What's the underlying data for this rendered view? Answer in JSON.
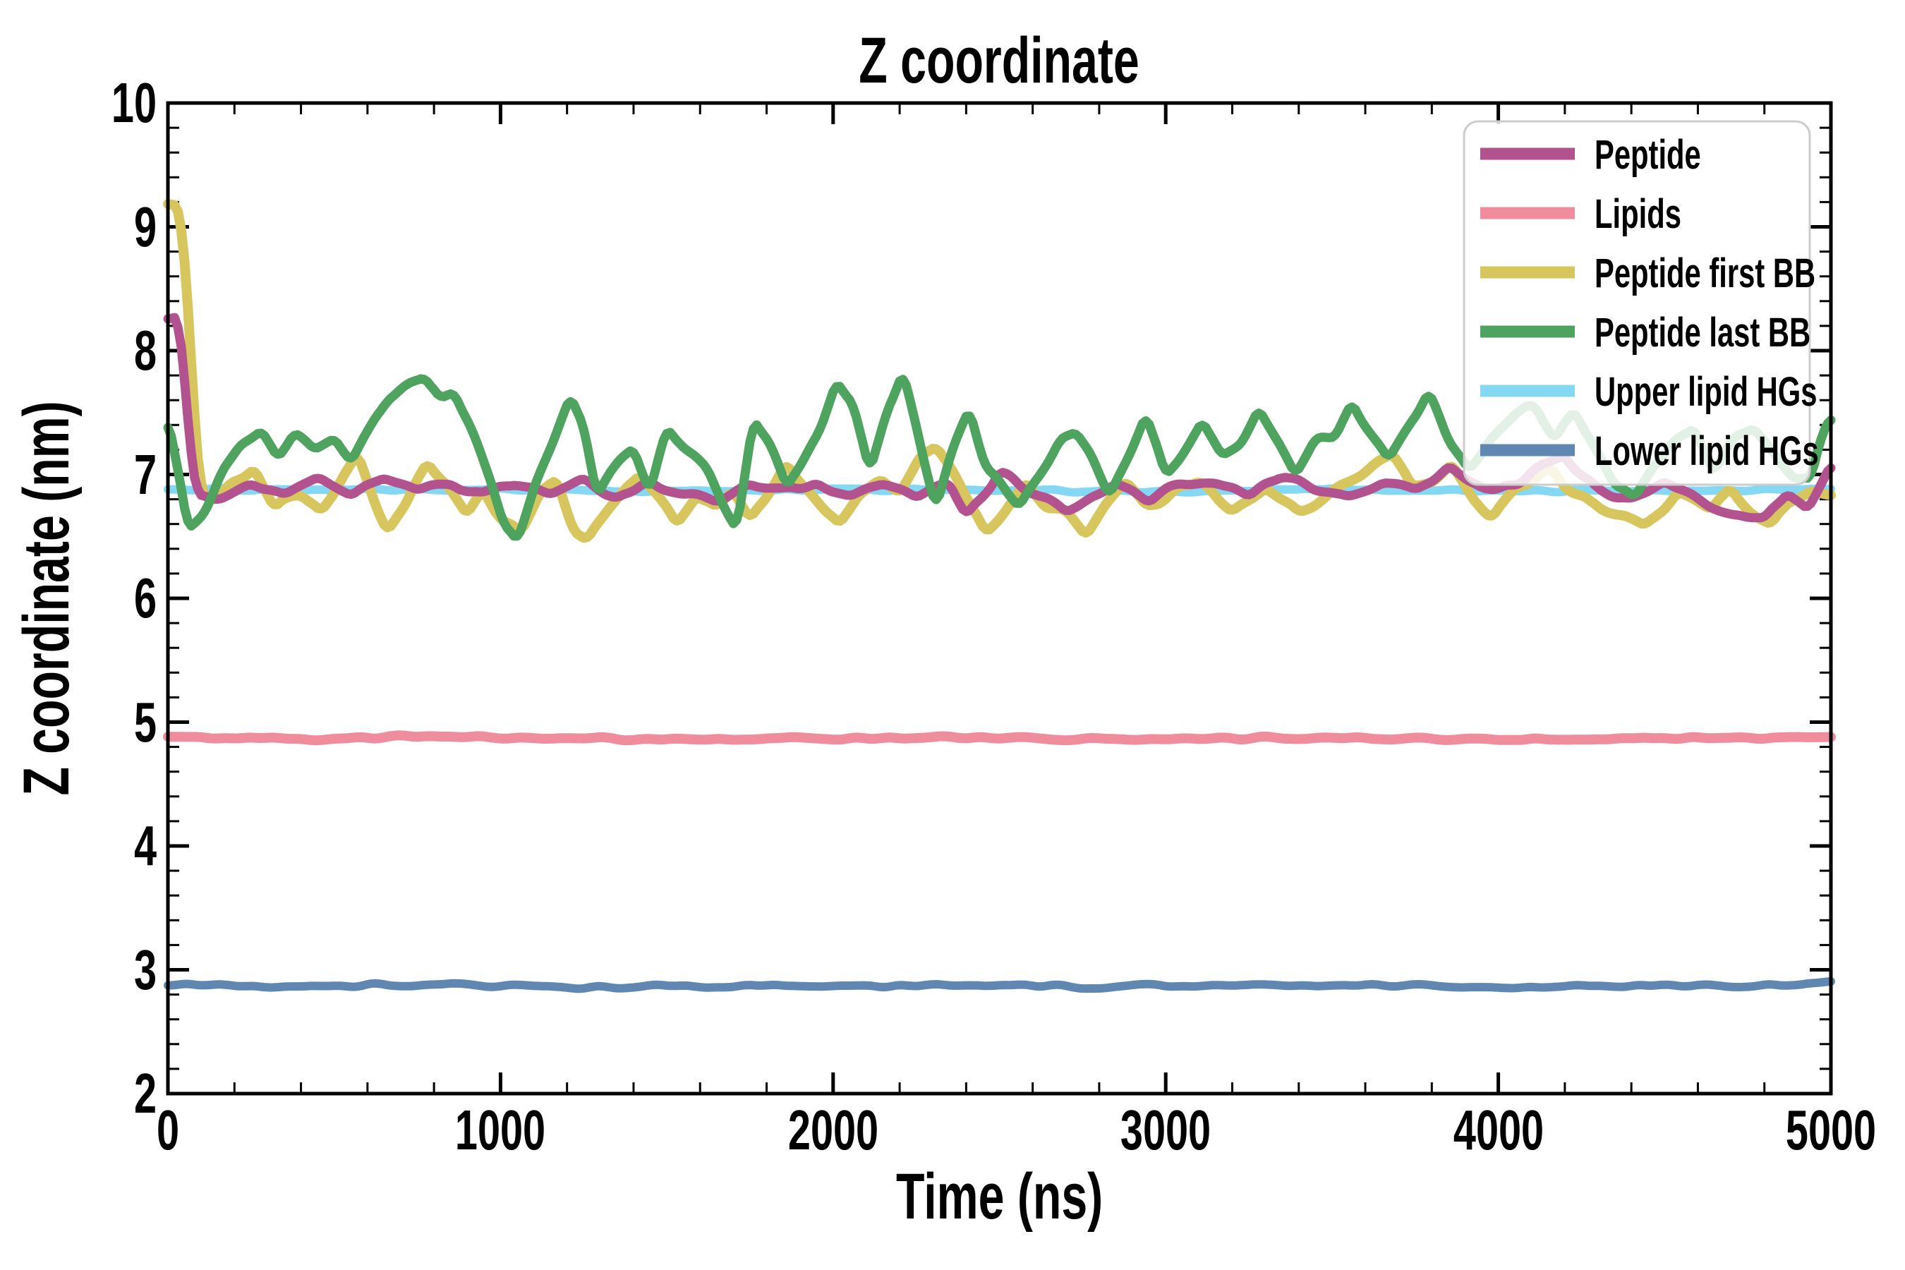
{
  "chart_data": {
    "type": "line",
    "title": "Z coordinate",
    "xlabel": "Time (ns)",
    "ylabel": "Z coordinate (nm)",
    "xlim": [
      0,
      5000
    ],
    "ylim": [
      2,
      10
    ],
    "x_major_ticks": [
      0,
      1000,
      2000,
      3000,
      4000,
      5000
    ],
    "x_minor_step": 200,
    "y_major_ticks": [
      10,
      9,
      8,
      7,
      6,
      5,
      4,
      3,
      2
    ],
    "y_minor_step": 0.2,
    "grid": false,
    "background": "#ffffff",
    "spine_color": "#000000",
    "legend_position": "upper right",
    "series": [
      {
        "name": "Lipids",
        "key": "lipids",
        "color": "#f08d9d",
        "line_width": 14,
        "noise": 0.018,
        "seed": 101,
        "keypoints": [
          [
            0,
            4.88
          ],
          [
            400,
            4.87
          ],
          [
            800,
            4.88
          ],
          [
            1200,
            4.87
          ],
          [
            1600,
            4.86
          ],
          [
            2000,
            4.87
          ],
          [
            2400,
            4.88
          ],
          [
            2800,
            4.86
          ],
          [
            3200,
            4.87
          ],
          [
            3600,
            4.87
          ],
          [
            4000,
            4.86
          ],
          [
            4400,
            4.87
          ],
          [
            4800,
            4.87
          ],
          [
            5000,
            4.89
          ]
        ]
      },
      {
        "name": "Lower lipid HGs",
        "key": "lower-lipid-hgs",
        "color": "#5f87b1",
        "line_width": 12,
        "noise": 0.022,
        "seed": 607,
        "keypoints": [
          [
            0,
            2.88
          ],
          [
            400,
            2.87
          ],
          [
            800,
            2.88
          ],
          [
            1200,
            2.86
          ],
          [
            1600,
            2.87
          ],
          [
            2000,
            2.87
          ],
          [
            2400,
            2.88
          ],
          [
            2800,
            2.86
          ],
          [
            3200,
            2.87
          ],
          [
            3600,
            2.88
          ],
          [
            4000,
            2.86
          ],
          [
            4400,
            2.87
          ],
          [
            4800,
            2.88
          ],
          [
            5000,
            2.9
          ]
        ]
      },
      {
        "name": "Upper lipid HGs",
        "key": "upper-lipid-hgs",
        "color": "#85d8f3",
        "line_width": 12,
        "noise": 0.015,
        "seed": 503,
        "keypoints": [
          [
            0,
            6.88
          ],
          [
            500,
            6.87
          ],
          [
            1000,
            6.88
          ],
          [
            1500,
            6.86
          ],
          [
            2000,
            6.88
          ],
          [
            2500,
            6.87
          ],
          [
            3000,
            6.86
          ],
          [
            3500,
            6.88
          ],
          [
            4000,
            6.87
          ],
          [
            4500,
            6.87
          ],
          [
            5000,
            6.88
          ]
        ]
      },
      {
        "name": "Peptide first BB",
        "key": "peptide-first-bb",
        "color": "#d7c55d",
        "line_width": 14,
        "noise": 0.06,
        "seed": 307,
        "keypoints": [
          [
            0,
            9.25
          ],
          [
            35,
            9.2
          ],
          [
            60,
            8.4
          ],
          [
            80,
            7.4
          ],
          [
            100,
            6.85
          ],
          [
            150,
            6.8
          ],
          [
            200,
            6.95
          ],
          [
            260,
            7.05
          ],
          [
            320,
            6.72
          ],
          [
            400,
            6.85
          ],
          [
            460,
            6.68
          ],
          [
            520,
            6.98
          ],
          [
            570,
            7.12
          ],
          [
            620,
            6.82
          ],
          [
            660,
            6.58
          ],
          [
            720,
            6.78
          ],
          [
            780,
            7.08
          ],
          [
            840,
            6.9
          ],
          [
            900,
            6.68
          ],
          [
            950,
            6.85
          ],
          [
            1010,
            6.62
          ],
          [
            1060,
            6.55
          ],
          [
            1120,
            6.85
          ],
          [
            1170,
            6.95
          ],
          [
            1220,
            6.58
          ],
          [
            1260,
            6.46
          ],
          [
            1320,
            6.72
          ],
          [
            1380,
            6.95
          ],
          [
            1420,
            7.02
          ],
          [
            1480,
            6.78
          ],
          [
            1530,
            6.62
          ],
          [
            1590,
            6.85
          ],
          [
            1650,
            6.72
          ],
          [
            1700,
            6.88
          ],
          [
            1750,
            6.62
          ],
          [
            1810,
            6.85
          ],
          [
            1860,
            7.05
          ],
          [
            1920,
            6.88
          ],
          [
            1970,
            6.72
          ],
          [
            2020,
            6.62
          ],
          [
            2080,
            6.85
          ],
          [
            2140,
            6.98
          ],
          [
            2200,
            6.88
          ],
          [
            2260,
            7.12
          ],
          [
            2310,
            7.22
          ],
          [
            2360,
            7.0
          ],
          [
            2420,
            6.75
          ],
          [
            2460,
            6.52
          ],
          [
            2520,
            6.72
          ],
          [
            2580,
            6.92
          ],
          [
            2640,
            6.75
          ],
          [
            2700,
            6.68
          ],
          [
            2760,
            6.53
          ],
          [
            2820,
            6.78
          ],
          [
            2880,
            6.95
          ],
          [
            2940,
            6.75
          ],
          [
            3000,
            6.82
          ],
          [
            3100,
            6.95
          ],
          [
            3200,
            6.72
          ],
          [
            3300,
            6.9
          ],
          [
            3400,
            6.68
          ],
          [
            3500,
            6.85
          ],
          [
            3620,
            7.08
          ],
          [
            3680,
            7.18
          ],
          [
            3740,
            6.9
          ],
          [
            3800,
            6.95
          ],
          [
            3860,
            7.12
          ],
          [
            3920,
            6.82
          ],
          [
            3980,
            6.68
          ],
          [
            4060,
            6.92
          ],
          [
            4160,
            7.0
          ],
          [
            4260,
            6.82
          ],
          [
            4360,
            6.66
          ],
          [
            4440,
            6.58
          ],
          [
            4540,
            6.85
          ],
          [
            4640,
            6.72
          ],
          [
            4700,
            6.88
          ],
          [
            4760,
            6.68
          ],
          [
            4820,
            6.56
          ],
          [
            4880,
            6.78
          ],
          [
            4940,
            6.88
          ],
          [
            5000,
            6.82
          ]
        ]
      },
      {
        "name": "Peptide",
        "key": "peptide",
        "color": "#b2538f",
        "line_width": 13,
        "noise": 0.05,
        "seed": 211,
        "keypoints": [
          [
            0,
            8.28
          ],
          [
            30,
            8.3
          ],
          [
            50,
            7.8
          ],
          [
            70,
            7.1
          ],
          [
            90,
            6.82
          ],
          [
            150,
            6.8
          ],
          [
            250,
            6.92
          ],
          [
            350,
            6.84
          ],
          [
            450,
            6.95
          ],
          [
            550,
            6.85
          ],
          [
            650,
            6.98
          ],
          [
            750,
            6.88
          ],
          [
            850,
            6.95
          ],
          [
            950,
            6.82
          ],
          [
            1050,
            6.93
          ],
          [
            1150,
            6.85
          ],
          [
            1250,
            6.95
          ],
          [
            1350,
            6.8
          ],
          [
            1450,
            6.92
          ],
          [
            1550,
            6.84
          ],
          [
            1650,
            6.78
          ],
          [
            1750,
            6.92
          ],
          [
            1850,
            6.86
          ],
          [
            1950,
            6.94
          ],
          [
            2050,
            6.84
          ],
          [
            2150,
            6.92
          ],
          [
            2250,
            6.8
          ],
          [
            2350,
            6.95
          ],
          [
            2400,
            6.68
          ],
          [
            2500,
            7.02
          ],
          [
            2600,
            6.86
          ],
          [
            2700,
            6.68
          ],
          [
            2750,
            6.75
          ],
          [
            2850,
            6.92
          ],
          [
            2950,
            6.8
          ],
          [
            3050,
            6.92
          ],
          [
            3150,
            6.96
          ],
          [
            3250,
            6.85
          ],
          [
            3350,
            7.0
          ],
          [
            3450,
            6.88
          ],
          [
            3550,
            6.82
          ],
          [
            3650,
            6.95
          ],
          [
            3750,
            6.86
          ],
          [
            3850,
            7.05
          ],
          [
            3950,
            6.88
          ],
          [
            4050,
            6.92
          ],
          [
            4150,
            7.08
          ],
          [
            4200,
            7.15
          ],
          [
            4300,
            6.88
          ],
          [
            4400,
            6.78
          ],
          [
            4500,
            6.95
          ],
          [
            4600,
            6.82
          ],
          [
            4700,
            6.68
          ],
          [
            4800,
            6.6
          ],
          [
            4870,
            6.85
          ],
          [
            4930,
            6.72
          ],
          [
            5000,
            7.05
          ]
        ]
      },
      {
        "name": "Peptide last BB",
        "key": "peptide-last-bb",
        "color": "#4ea35f",
        "line_width": 13,
        "noise": 0.07,
        "seed": 409,
        "keypoints": [
          [
            0,
            7.42
          ],
          [
            30,
            7.0
          ],
          [
            60,
            6.55
          ],
          [
            110,
            6.72
          ],
          [
            160,
            7.05
          ],
          [
            220,
            7.25
          ],
          [
            280,
            7.35
          ],
          [
            330,
            7.15
          ],
          [
            380,
            7.32
          ],
          [
            440,
            7.2
          ],
          [
            500,
            7.28
          ],
          [
            550,
            7.12
          ],
          [
            600,
            7.32
          ],
          [
            660,
            7.58
          ],
          [
            720,
            7.72
          ],
          [
            770,
            7.82
          ],
          [
            820,
            7.58
          ],
          [
            860,
            7.66
          ],
          [
            920,
            7.3
          ],
          [
            970,
            7.0
          ],
          [
            1010,
            6.62
          ],
          [
            1050,
            6.52
          ],
          [
            1110,
            6.95
          ],
          [
            1160,
            7.25
          ],
          [
            1210,
            7.62
          ],
          [
            1250,
            7.45
          ],
          [
            1290,
            6.88
          ],
          [
            1340,
            7.05
          ],
          [
            1400,
            7.22
          ],
          [
            1450,
            6.88
          ],
          [
            1500,
            7.35
          ],
          [
            1560,
            7.18
          ],
          [
            1620,
            7.05
          ],
          [
            1670,
            6.75
          ],
          [
            1710,
            6.58
          ],
          [
            1760,
            7.42
          ],
          [
            1810,
            7.22
          ],
          [
            1860,
            6.88
          ],
          [
            1910,
            7.12
          ],
          [
            1960,
            7.35
          ],
          [
            2010,
            7.78
          ],
          [
            2060,
            7.58
          ],
          [
            2110,
            7.0
          ],
          [
            2160,
            7.52
          ],
          [
            2210,
            7.8
          ],
          [
            2260,
            7.3
          ],
          [
            2310,
            6.76
          ],
          [
            2360,
            7.22
          ],
          [
            2410,
            7.52
          ],
          [
            2460,
            7.12
          ],
          [
            2510,
            6.9
          ],
          [
            2560,
            6.72
          ],
          [
            2620,
            7.02
          ],
          [
            2680,
            7.28
          ],
          [
            2730,
            7.35
          ],
          [
            2780,
            7.15
          ],
          [
            2830,
            6.85
          ],
          [
            2890,
            7.18
          ],
          [
            2940,
            7.46
          ],
          [
            3000,
            6.95
          ],
          [
            3060,
            7.22
          ],
          [
            3110,
            7.42
          ],
          [
            3170,
            7.15
          ],
          [
            3230,
            7.32
          ],
          [
            3280,
            7.56
          ],
          [
            3340,
            7.25
          ],
          [
            3390,
            7.0
          ],
          [
            3450,
            7.25
          ],
          [
            3510,
            7.32
          ],
          [
            3560,
            7.56
          ],
          [
            3620,
            7.28
          ],
          [
            3670,
            7.1
          ],
          [
            3730,
            7.38
          ],
          [
            3790,
            7.6
          ],
          [
            3850,
            7.28
          ],
          [
            3910,
            7.05
          ],
          [
            3970,
            7.28
          ],
          [
            4040,
            7.45
          ],
          [
            4110,
            7.55
          ],
          [
            4170,
            7.3
          ],
          [
            4230,
            7.5
          ],
          [
            4290,
            7.22
          ],
          [
            4350,
            6.92
          ],
          [
            4410,
            6.8
          ],
          [
            4470,
            7.08
          ],
          [
            4530,
            7.28
          ],
          [
            4590,
            7.38
          ],
          [
            4650,
            7.02
          ],
          [
            4710,
            7.32
          ],
          [
            4770,
            7.42
          ],
          [
            4830,
            7.15
          ],
          [
            4890,
            6.92
          ],
          [
            4940,
            6.95
          ],
          [
            4970,
            7.3
          ],
          [
            5000,
            7.45
          ]
        ]
      }
    ]
  },
  "legend": {
    "fill": "#ffffff",
    "fill_opacity": 0.84,
    "border_color": "#cccccc",
    "items": [
      {
        "label": "Peptide",
        "series": "peptide",
        "color": "#b2538f"
      },
      {
        "label": "Lipids",
        "series": "lipids",
        "color": "#f08d9d"
      },
      {
        "label": "Peptide first BB",
        "series": "peptide-first-bb",
        "color": "#d7c55d"
      },
      {
        "label": "Peptide last BB",
        "series": "peptide-last-bb",
        "color": "#4ea35f"
      },
      {
        "label": "Upper lipid HGs",
        "series": "upper-lipid-hgs",
        "color": "#85d8f3"
      },
      {
        "label": "Lower lipid HGs",
        "series": "lower-lipid-hgs",
        "color": "#5f87b1"
      }
    ]
  }
}
